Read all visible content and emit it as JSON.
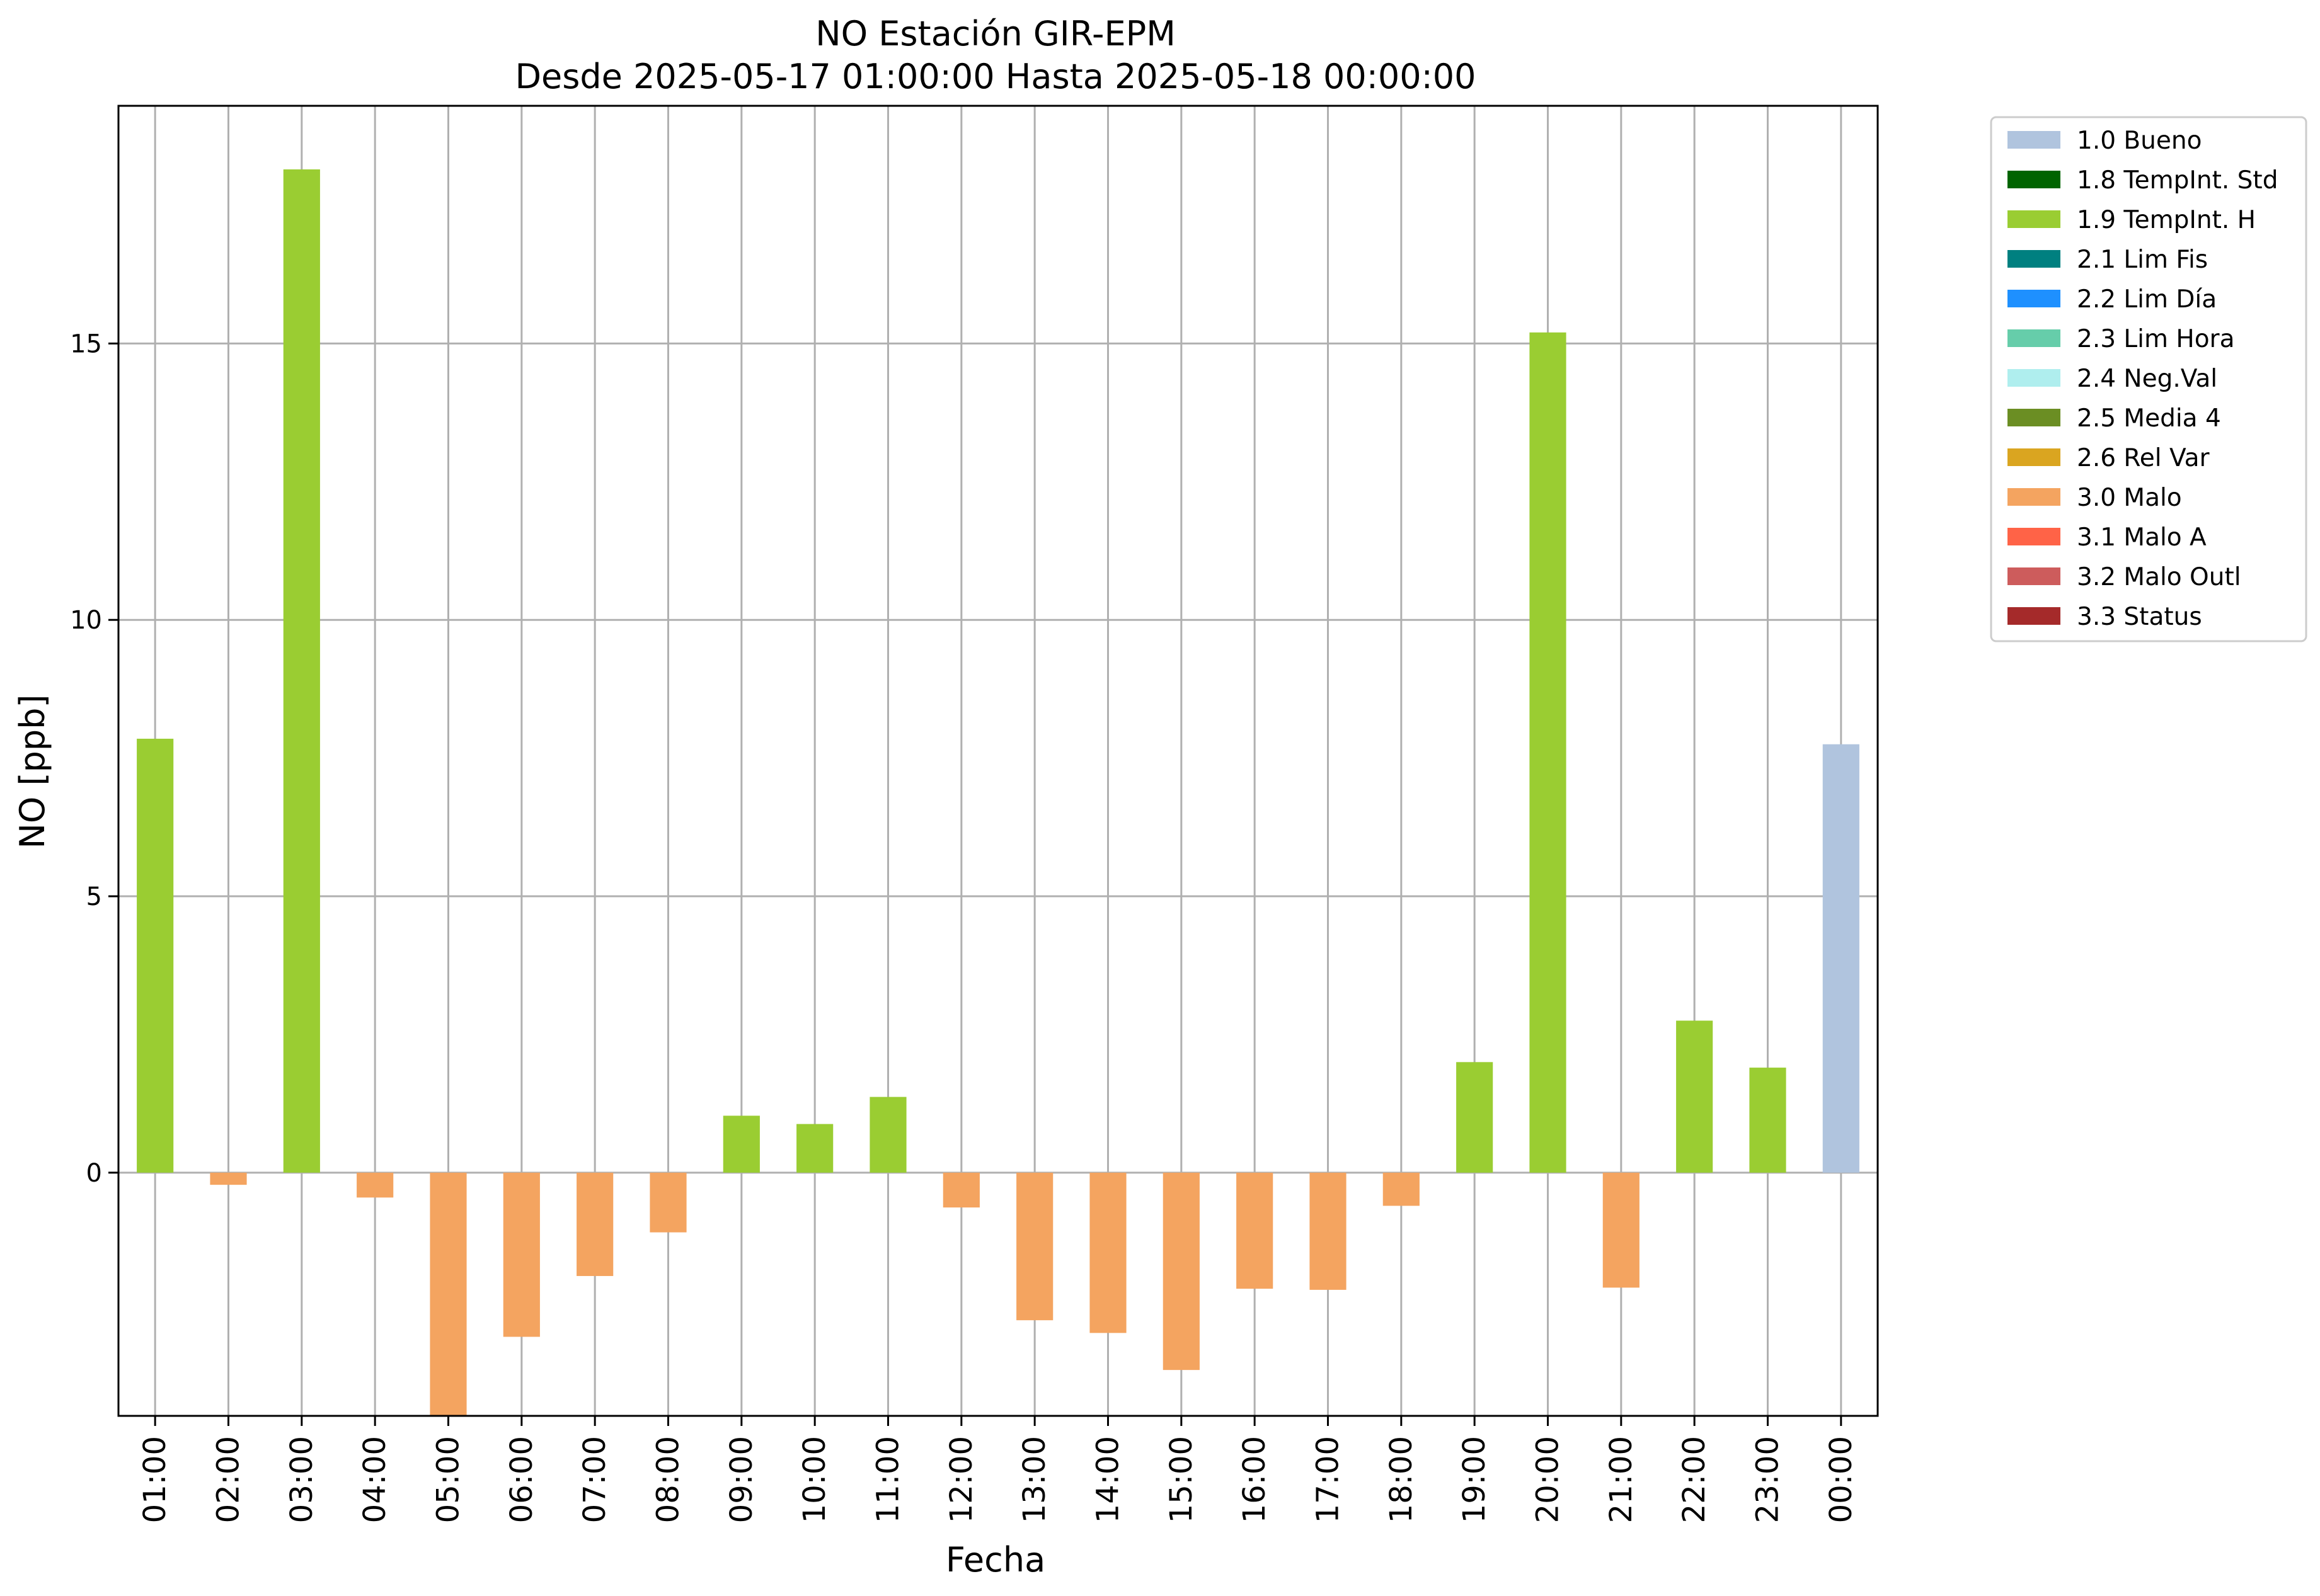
{
  "chart_data": {
    "type": "bar",
    "title": "NO Estación GIR-EPM",
    "subtitle": "Desde 2025-05-17 01:00:00 Hasta 2025-05-18 00:00:00",
    "xlabel": "Fecha",
    "ylabel": "NO [ppb]",
    "ylim": [
      -4.4,
      19.3
    ],
    "yticks": [
      0,
      5,
      10,
      15
    ],
    "grid": true,
    "legend_position": "outside-top-right",
    "categories": [
      "01:00",
      "02:00",
      "03:00",
      "04:00",
      "05:00",
      "06:00",
      "07:00",
      "08:00",
      "09:00",
      "10:00",
      "11:00",
      "12:00",
      "13:00",
      "14:00",
      "15:00",
      "16:00",
      "17:00",
      "18:00",
      "19:00",
      "20:00",
      "21:00",
      "22:00",
      "23:00",
      "00:00"
    ],
    "values": [
      7.85,
      -0.22,
      18.15,
      -0.45,
      -4.4,
      -2.97,
      -1.87,
      -1.08,
      1.03,
      0.88,
      1.37,
      -0.63,
      -2.67,
      -2.9,
      -3.57,
      -2.1,
      -2.12,
      -0.6,
      2.0,
      15.2,
      -2.08,
      2.75,
      1.9,
      7.75
    ],
    "flags": [
      "1.9",
      "3.0",
      "1.9",
      "3.0",
      "3.0",
      "3.0",
      "3.0",
      "3.0",
      "1.9",
      "1.9",
      "1.9",
      "3.0",
      "3.0",
      "3.0",
      "3.0",
      "3.0",
      "3.0",
      "3.0",
      "1.9",
      "1.9",
      "3.0",
      "1.9",
      "1.9",
      "1.0"
    ],
    "legend": [
      {
        "code": "1.0",
        "label": "1.0 Bueno",
        "color": "#b0c4de"
      },
      {
        "code": "1.8",
        "label": "1.8 TempInt. Std",
        "color": "#006400"
      },
      {
        "code": "1.9",
        "label": "1.9 TempInt. H",
        "color": "#9acd32"
      },
      {
        "code": "2.1",
        "label": "2.1 Lim Fis",
        "color": "#008080"
      },
      {
        "code": "2.2",
        "label": "2.2 Lim Día",
        "color": "#1e90ff"
      },
      {
        "code": "2.3",
        "label": "2.3 Lim Hora",
        "color": "#66cdaa"
      },
      {
        "code": "2.4",
        "label": "2.4 Neg.Val",
        "color": "#afeeee"
      },
      {
        "code": "2.5",
        "label": "2.5 Media 4",
        "color": "#6b8e23"
      },
      {
        "code": "2.6",
        "label": "2.6 Rel Var",
        "color": "#daa520"
      },
      {
        "code": "3.0",
        "label": "3.0 Malo",
        "color": "#f4a460"
      },
      {
        "code": "3.1",
        "label": "3.1 Malo A",
        "color": "#ff6347"
      },
      {
        "code": "3.2",
        "label": "3.2 Malo Outl",
        "color": "#cd5c5c"
      },
      {
        "code": "3.3",
        "label": "3.3 Status",
        "color": "#a52a2a"
      }
    ]
  }
}
